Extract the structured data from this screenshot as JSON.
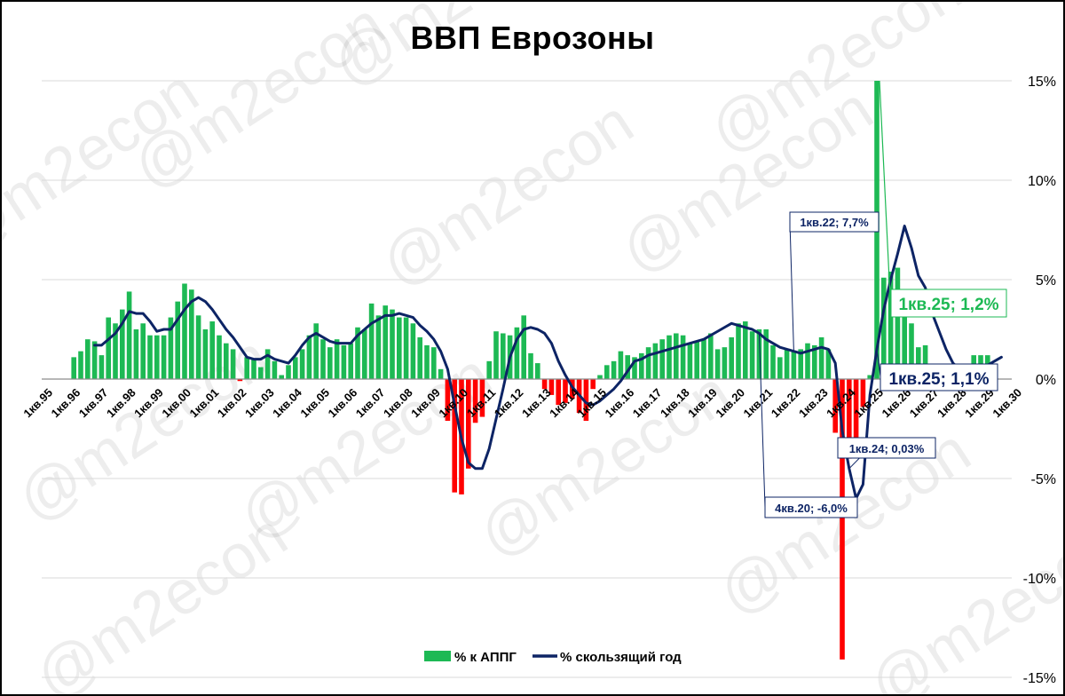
{
  "chart_data": {
    "type": "bar",
    "title": "ВВП Еврозоны",
    "ylim": [
      -15,
      15
    ],
    "y_ticks": [
      15,
      10,
      5,
      0,
      -5,
      -10,
      -15
    ],
    "y_tick_labels": [
      "15%",
      "10%",
      "5%",
      "0%",
      "-5%",
      "-10%",
      "-15%"
    ],
    "y_axis_position": "right",
    "grid": "horizontal",
    "legend_position": "bottom-center",
    "x_range": [
      "1кв.95",
      "1кв.30"
    ],
    "x_tick_labels": [
      "1кв.95",
      "1кв.96",
      "1кв.97",
      "1кв.98",
      "1кв.99",
      "1кв.00",
      "1кв.01",
      "1кв.02",
      "1кв.03",
      "1кв.04",
      "1кв.05",
      "1кв.06",
      "1кв.07",
      "1кв.08",
      "1кв.09",
      "1кв.10",
      "1кв.11",
      "1кв.12",
      "1кв.13",
      "1кв.14",
      "1кв.15",
      "1кв.16",
      "1кв.17",
      "1кв.18",
      "1кв.19",
      "1кв.20",
      "1кв.21",
      "1кв.22",
      "1кв.23",
      "1кв.24",
      "1кв.25",
      "1кв.26",
      "1кв.27",
      "1кв.28",
      "1кв.29",
      "1кв.30"
    ],
    "colors": {
      "bar_positive": "#1db954",
      "bar_negative": "#ff0000",
      "line": "#0d2465",
      "ann_green": "#1db954",
      "grid": "#d9d9d9"
    },
    "series": [
      {
        "name": "% к АППГ",
        "type": "bar",
        "start_year": 1996,
        "values": [
          1.1,
          1.4,
          2.0,
          1.9,
          1.2,
          3.1,
          2.8,
          3.5,
          4.4,
          2.5,
          2.8,
          2.2,
          2.2,
          2.2,
          3.1,
          3.9,
          4.8,
          4.5,
          3.2,
          2.5,
          2.9,
          2.2,
          1.8,
          1.5,
          -0.1,
          1.1,
          1.0,
          0.6,
          1.5,
          0.9,
          0.2,
          0.7,
          1.1,
          1.5,
          2.2,
          2.8,
          2.0,
          1.6,
          2.0,
          1.7,
          1.8,
          2.6,
          2.5,
          3.8,
          3.2,
          3.7,
          3.5,
          3.1,
          3.1,
          2.8,
          2.1,
          1.7,
          1.6,
          0.5,
          -2.1,
          -5.7,
          -5.8,
          -4.5,
          -2.2,
          -1.9,
          0.9,
          2.4,
          2.3,
          2.2,
          2.6,
          3.2,
          1.3,
          0.8,
          -0.5,
          -0.8,
          -1.3,
          -1.2,
          -1.0,
          -1.7,
          -2.1,
          -0.5,
          0.2,
          0.7,
          0.9,
          1.4,
          1.2,
          1.1,
          1.3,
          1.6,
          1.8,
          2.0,
          2.2,
          2.3,
          2.2,
          1.8,
          1.9,
          2.0,
          2.3,
          1.5,
          1.6,
          2.1,
          2.8,
          2.9,
          2.4,
          2.5,
          2.5,
          1.7,
          1.1,
          1.5,
          1.4,
          1.5,
          1.8,
          1.7,
          2.1,
          1.5,
          -2.7,
          -14.1,
          -4.0,
          -3.3,
          -1.4,
          0.2,
          15.0,
          5.1,
          5.4,
          5.6,
          4.2,
          2.8,
          1.6,
          1.7,
          0.3,
          0.4,
          -0.3,
          -0.1,
          0.3,
          0.7,
          1.2,
          1.2,
          1.2
        ]
      },
      {
        "name": "% скользящий год",
        "type": "line",
        "start_year": 1996,
        "values": [
          null,
          null,
          null,
          1.7,
          1.7,
          2.0,
          2.3,
          2.8,
          3.4,
          3.3,
          3.3,
          2.9,
          2.4,
          2.5,
          2.5,
          3.0,
          3.5,
          3.9,
          4.1,
          3.9,
          3.5,
          3.0,
          2.5,
          2.1,
          1.6,
          1.1,
          1.0,
          1.0,
          1.2,
          1.0,
          0.9,
          0.8,
          1.2,
          1.7,
          2.1,
          2.3,
          2.1,
          1.9,
          1.8,
          1.8,
          1.8,
          2.2,
          2.5,
          2.8,
          3.0,
          3.2,
          3.2,
          3.3,
          3.2,
          3.1,
          2.7,
          2.4,
          2.0,
          1.4,
          0.5,
          -1.3,
          -3.0,
          -4.2,
          -4.5,
          -4.5,
          -3.5,
          -2.0,
          -0.5,
          1.1,
          2.0,
          2.5,
          2.6,
          2.5,
          2.3,
          1.8,
          0.9,
          0.2,
          -0.4,
          -0.8,
          -1.2,
          -1.3,
          -1.1,
          -0.8,
          -0.5,
          -0.1,
          0.4,
          0.9,
          1.0,
          1.2,
          1.3,
          1.4,
          1.5,
          1.6,
          1.7,
          1.8,
          1.9,
          2.0,
          2.2,
          2.4,
          2.6,
          2.8,
          2.7,
          2.6,
          2.5,
          2.3,
          2.0,
          1.8,
          1.6,
          1.5,
          1.4,
          1.3,
          1.4,
          1.5,
          1.6,
          1.5,
          0.8,
          -2.6,
          -4.5,
          -6.0,
          -5.3,
          -0.8,
          1.5,
          3.5,
          5.0,
          6.3,
          7.7,
          6.6,
          5.2,
          4.6,
          3.3,
          2.4,
          1.5,
          0.8,
          0.5,
          0.03,
          0.2,
          0.4,
          0.7,
          0.9,
          1.1
        ]
      }
    ],
    "annotations": [
      {
        "text": "1кв.22; 7,7%",
        "style": "small"
      },
      {
        "text": "4кв.20; -6,0%",
        "style": "small"
      },
      {
        "text": "1кв.24; 0,03%",
        "style": "small"
      },
      {
        "text": "1кв.25; 1,2%",
        "style": "big-green"
      },
      {
        "text": "1кв.25; 1,1%",
        "style": "big-navy"
      }
    ],
    "watermark": "@m2econ"
  }
}
